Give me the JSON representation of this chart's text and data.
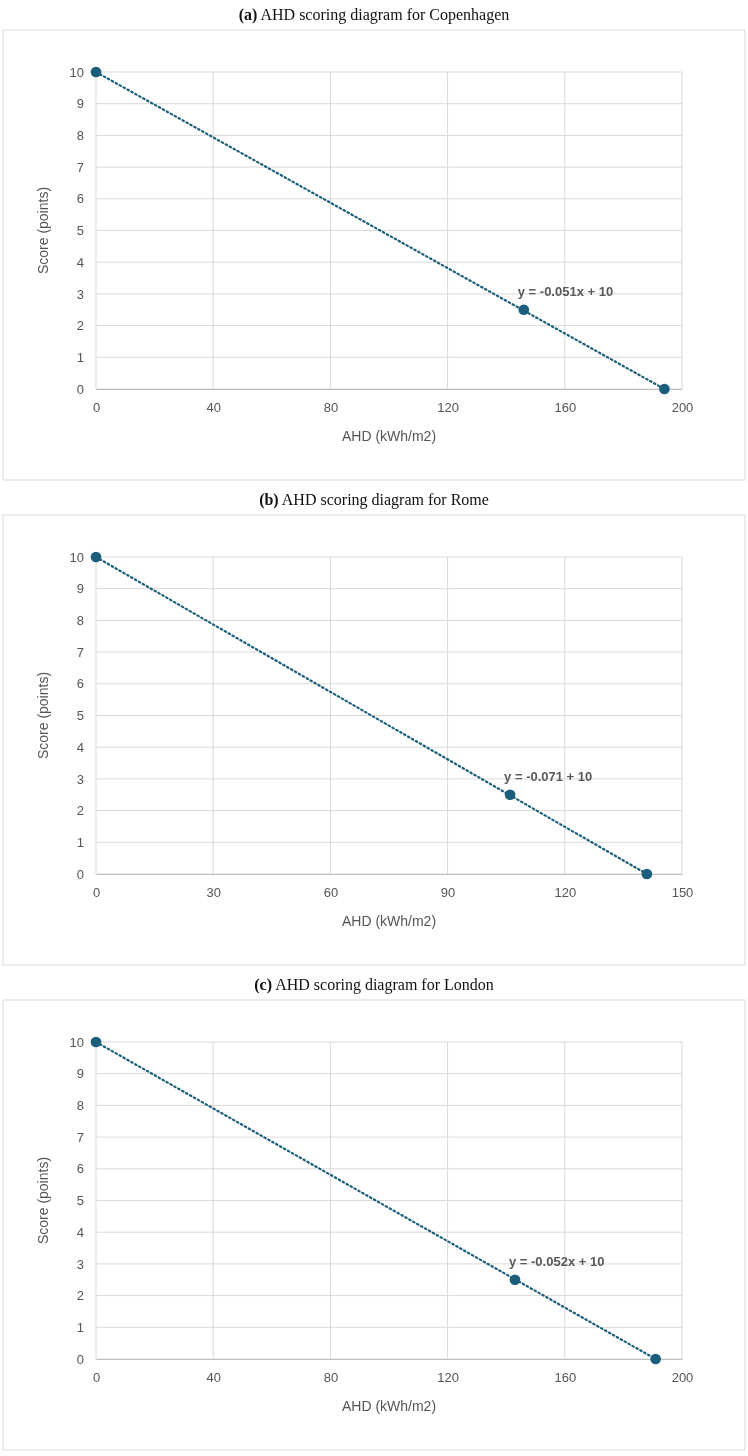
{
  "chart_data": [
    {
      "type": "scatter",
      "title": "(a) AHD scoring diagram for Copenhagen",
      "xlabel": "AHD (kWh/m2)",
      "ylabel": "Score (points)",
      "xlim": [
        0,
        200
      ],
      "xticks": [
        0,
        40,
        80,
        120,
        160,
        200
      ],
      "ylim": [
        0,
        10
      ],
      "yticks": [
        0,
        1,
        2,
        3,
        4,
        5,
        6,
        7,
        8,
        9,
        10
      ],
      "grid": true,
      "annotations": [
        "y = -0.051x + 10"
      ],
      "series": [
        {
          "color": "#1b5e7b",
          "marker": "circle",
          "x": [
            0,
            146,
            194
          ],
          "values": [
            10,
            2.5,
            0
          ]
        },
        {
          "type": "line",
          "color": "#1b5e7b",
          "line_style": "dotted",
          "marker": "none",
          "x": [
            0,
            194
          ],
          "values": [
            10,
            0
          ]
        }
      ]
    },
    {
      "type": "scatter",
      "title": "(b) AHD scoring diagram for Rome",
      "xlabel": "AHD (kWh/m2)",
      "ylabel": "Score (points)",
      "xlim": [
        0,
        150
      ],
      "xticks": [
        0,
        30,
        60,
        90,
        120,
        150
      ],
      "ylim": [
        0,
        10
      ],
      "yticks": [
        0,
        1,
        2,
        3,
        4,
        5,
        6,
        7,
        8,
        9,
        10
      ],
      "grid": true,
      "annotations": [
        "y = -0.071 + 10"
      ],
      "series": [
        {
          "color": "#1b5e7b",
          "marker": "circle",
          "x": [
            0,
            106,
            141
          ],
          "values": [
            10,
            2.5,
            0
          ]
        },
        {
          "type": "line",
          "color": "#1b5e7b",
          "line_style": "dotted",
          "marker": "none",
          "x": [
            0,
            141
          ],
          "values": [
            10,
            0
          ]
        }
      ]
    },
    {
      "type": "scatter",
      "title": "(c) AHD scoring diagram for London",
      "xlabel": "AHD (kWh/m2)",
      "ylabel": "Score (points)",
      "xlim": [
        0,
        200
      ],
      "xticks": [
        0,
        40,
        80,
        120,
        160,
        200
      ],
      "ylim": [
        0,
        10
      ],
      "yticks": [
        0,
        1,
        2,
        3,
        4,
        5,
        6,
        7,
        8,
        9,
        10
      ],
      "grid": true,
      "annotations": [
        "y = -0.052x + 10"
      ],
      "series": [
        {
          "color": "#1b5e7b",
          "marker": "circle",
          "x": [
            0,
            143,
            191
          ],
          "values": [
            10,
            2.5,
            0
          ]
        },
        {
          "type": "line",
          "color": "#1b5e7b",
          "line_style": "dotted",
          "marker": "none",
          "x": [
            0,
            191
          ],
          "values": [
            10,
            0
          ]
        }
      ]
    }
  ]
}
